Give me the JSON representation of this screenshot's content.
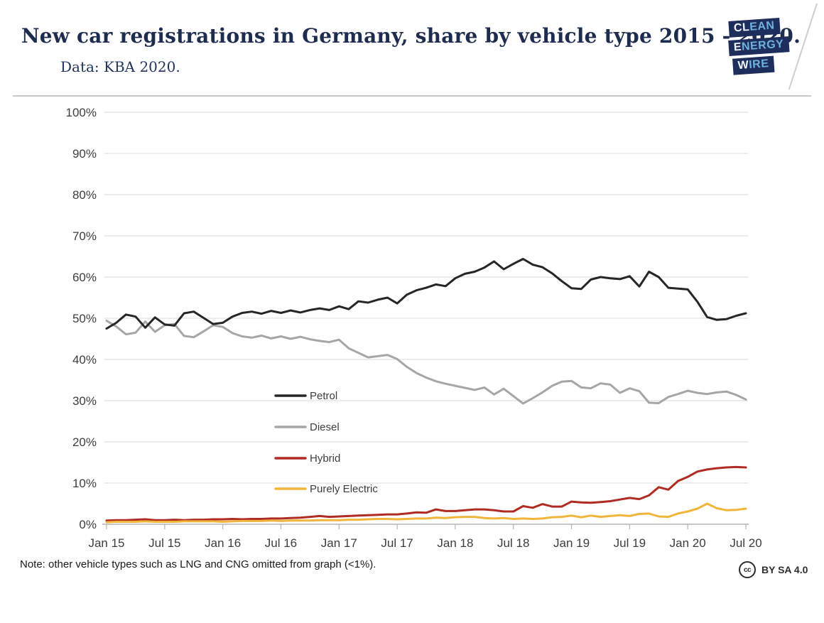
{
  "header": {
    "title": "New car registrations in Germany, share by vehicle type 2015 - 2020.",
    "subtitle": "Data: KBA 2020.",
    "logo": {
      "lines": [
        {
          "lead": "CL",
          "rest": "EAN"
        },
        {
          "lead": "E",
          "rest": "NERGY"
        },
        {
          "lead": "W",
          "rest": "IRE"
        }
      ],
      "box_color": "#1d2e5c",
      "lead_color": "#f2f6fa",
      "rest_color": "#6fb0dc"
    }
  },
  "footer": {
    "note": "Note: other vehicle types such as LNG and CNG omitted from graph (<1%).",
    "license": {
      "icon": "cc",
      "label": "BY SA 4.0"
    }
  },
  "chart_data": {
    "type": "line",
    "title": "",
    "xlabel": "",
    "ylabel": "",
    "x_unit": "month",
    "x_start": "Jan 2015",
    "x_end": "Jul 2020",
    "ylim": [
      0,
      100
    ],
    "grid": "horizontal",
    "y_ticks": [
      100,
      90,
      80,
      70,
      60,
      50,
      40,
      30,
      20,
      10,
      0
    ],
    "y_tick_suffix": "%",
    "x_tick_indices": [
      0,
      6,
      12,
      18,
      24,
      30,
      36,
      42,
      48,
      54,
      60,
      66
    ],
    "x_tick_labels": [
      "Jan 15",
      "Jul 15",
      "Jan 16",
      "Jul 16",
      "Jan 17",
      "Jul 17",
      "Jan 18",
      "Jul 18",
      "Jan 19",
      "Jul 19",
      "Jan 20",
      "Jul 20"
    ],
    "legend_position": "inside-center-left",
    "series": [
      {
        "name": "Petrol",
        "color": "#262626",
        "values": [
          47.5,
          48.9,
          50.9,
          50.4,
          47.7,
          50.2,
          48.5,
          48.2,
          51.2,
          51.6,
          50.1,
          48.6,
          48.9,
          50.4,
          51.3,
          51.6,
          51.1,
          51.8,
          51.3,
          51.9,
          51.4,
          52.0,
          52.4,
          52.0,
          52.9,
          52.2,
          54.1,
          53.8,
          54.5,
          55.0,
          53.6,
          55.7,
          56.8,
          57.4,
          58.2,
          57.8,
          59.7,
          60.8,
          61.3,
          62.3,
          63.8,
          61.9,
          63.2,
          64.4,
          63.0,
          62.4,
          60.9,
          59.0,
          57.3,
          57.1,
          59.4,
          60.0,
          59.7,
          59.5,
          60.2,
          57.7,
          61.3,
          60.0,
          57.4,
          57.2,
          57.0,
          54.0,
          50.3,
          49.6,
          49.8,
          50.6,
          51.2
        ]
      },
      {
        "name": "Diesel",
        "color": "#a6a6a6",
        "values": [
          49.4,
          48.0,
          46.1,
          46.5,
          49.2,
          46.7,
          48.3,
          48.6,
          45.7,
          45.4,
          46.8,
          48.3,
          47.9,
          46.4,
          45.6,
          45.3,
          45.8,
          45.1,
          45.6,
          45.0,
          45.5,
          44.9,
          44.5,
          44.2,
          44.8,
          42.7,
          41.6,
          40.5,
          40.8,
          41.1,
          40.1,
          38.2,
          36.7,
          35.6,
          34.7,
          34.1,
          33.6,
          33.1,
          32.6,
          33.2,
          31.5,
          32.9,
          31.1,
          29.3,
          30.6,
          32.0,
          33.6,
          34.6,
          34.8,
          33.2,
          33.0,
          34.2,
          33.9,
          31.9,
          33.0,
          32.3,
          29.5,
          29.4,
          30.9,
          31.6,
          32.4,
          31.9,
          31.6,
          32.0,
          32.2,
          31.4,
          30.3
        ]
      },
      {
        "name": "Hybrid",
        "color": "#b02b22",
        "values": [
          0.9,
          1.0,
          1.0,
          1.1,
          1.2,
          1.0,
          1.0,
          1.1,
          1.0,
          1.1,
          1.1,
          1.2,
          1.2,
          1.3,
          1.2,
          1.3,
          1.3,
          1.4,
          1.4,
          1.5,
          1.6,
          1.8,
          2.0,
          1.8,
          1.9,
          2.0,
          2.1,
          2.2,
          2.3,
          2.4,
          2.4,
          2.6,
          2.9,
          2.8,
          3.6,
          3.2,
          3.2,
          3.4,
          3.6,
          3.6,
          3.4,
          3.1,
          3.1,
          4.4,
          4.0,
          4.9,
          4.3,
          4.3,
          5.5,
          5.3,
          5.2,
          5.4,
          5.6,
          6.0,
          6.4,
          6.1,
          7.0,
          9.0,
          8.4,
          10.5,
          11.5,
          12.8,
          13.3,
          13.6,
          13.8,
          13.9,
          13.8
        ]
      },
      {
        "name": "Purely Electric",
        "color": "#f0b63c",
        "values": [
          0.5,
          0.6,
          0.6,
          0.6,
          0.7,
          0.6,
          0.6,
          0.6,
          0.7,
          0.7,
          0.7,
          0.7,
          0.6,
          0.7,
          0.8,
          0.8,
          0.8,
          0.9,
          0.8,
          0.9,
          0.9,
          0.9,
          1.0,
          1.0,
          1.0,
          1.1,
          1.1,
          1.2,
          1.3,
          1.3,
          1.2,
          1.3,
          1.4,
          1.4,
          1.6,
          1.5,
          1.7,
          1.8,
          1.8,
          1.5,
          1.4,
          1.5,
          1.3,
          1.4,
          1.3,
          1.4,
          1.7,
          1.8,
          2.1,
          1.7,
          2.1,
          1.8,
          2.0,
          2.2,
          2.0,
          2.5,
          2.6,
          1.9,
          1.8,
          2.6,
          3.1,
          3.8,
          5.0,
          3.9,
          3.4,
          3.5,
          3.8
        ]
      }
    ]
  }
}
